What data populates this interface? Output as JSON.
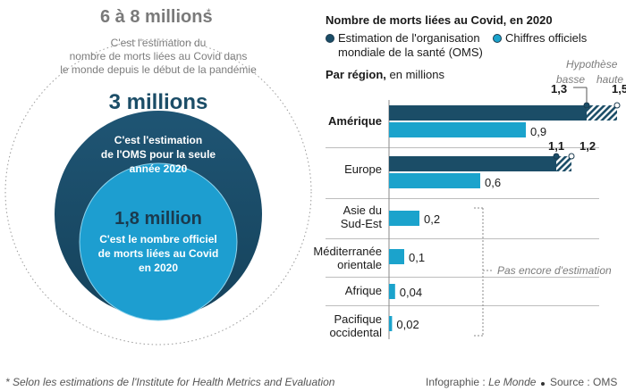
{
  "left_panel": {
    "outer": {
      "value": "6 à 8 millions",
      "footnote_mark": "*",
      "lines": [
        "C'est l'estimation du",
        "nombre de morts liées au Covid dans",
        "le monde depuis le début de la pandémie"
      ]
    },
    "middle": {
      "value": "3 millions",
      "lines": [
        "C'est l'estimation",
        "de l'OMS pour la seule",
        "année 2020"
      ]
    },
    "inner": {
      "value": "1,8 million",
      "lines": [
        "C'est le nombre officiel",
        "de morts liées au Covid",
        "en 2020"
      ]
    }
  },
  "right_panel": {
    "title": "Nombre de morts liées au Covid, en 2020",
    "legend": {
      "who_estimate": {
        "label_line1": "Estimation de l'organisation",
        "label_line2": "mondiale de la santé (OMS)",
        "color": "#1b4d67"
      },
      "official": {
        "label": "Chiffres officiels",
        "color": "#1ba3cc"
      }
    },
    "subtitle_bold": "Par région,",
    "subtitle_rest": " en millions",
    "hyp_label": "Hypothèse",
    "hyp_low": "basse",
    "hyp_high": "haute",
    "no_estimate": "Pas encore d'estimation"
  },
  "chart_data": {
    "type": "bar",
    "orientation": "horizontal",
    "unit": "millions",
    "categories": [
      "Amérique",
      "Europe",
      "Asie du Sud-Est",
      "Méditerranée orientale",
      "Afrique",
      "Pacifique occidental"
    ],
    "category_lines": [
      [
        "Amérique"
      ],
      [
        "Europe"
      ],
      [
        "Asie du",
        "Sud-Est"
      ],
      [
        "Méditerranée",
        "orientale"
      ],
      [
        "Afrique"
      ],
      [
        "Pacifique",
        "occidental"
      ]
    ],
    "series": [
      {
        "name": "Estimation de l'organisation mondiale de la santé (OMS) – hypothèse basse",
        "values": [
          1.3,
          1.1,
          null,
          null,
          null,
          null
        ]
      },
      {
        "name": "Estimation de l'organisation mondiale de la santé (OMS) – hypothèse haute",
        "values": [
          1.5,
          1.2,
          null,
          null,
          null,
          null
        ]
      },
      {
        "name": "Chiffres officiels",
        "values": [
          0.9,
          0.6,
          0.2,
          0.1,
          0.04,
          0.02
        ]
      }
    ],
    "value_labels": {
      "estimate_low": [
        "1,3",
        "1,1"
      ],
      "estimate_high": [
        "1,5",
        "1,2"
      ],
      "official": [
        "0,9",
        "0,6",
        "0,2",
        "0,1",
        "0,04",
        "0,02"
      ]
    },
    "xlim": [
      0,
      1.5
    ]
  },
  "footer": {
    "footnote": "* Selon les estimations de l'Institute for Health Metrics and Evaluation",
    "credit_prefix": "Infographie : ",
    "credit_name": "Le Monde",
    "source": "Source : OMS"
  }
}
